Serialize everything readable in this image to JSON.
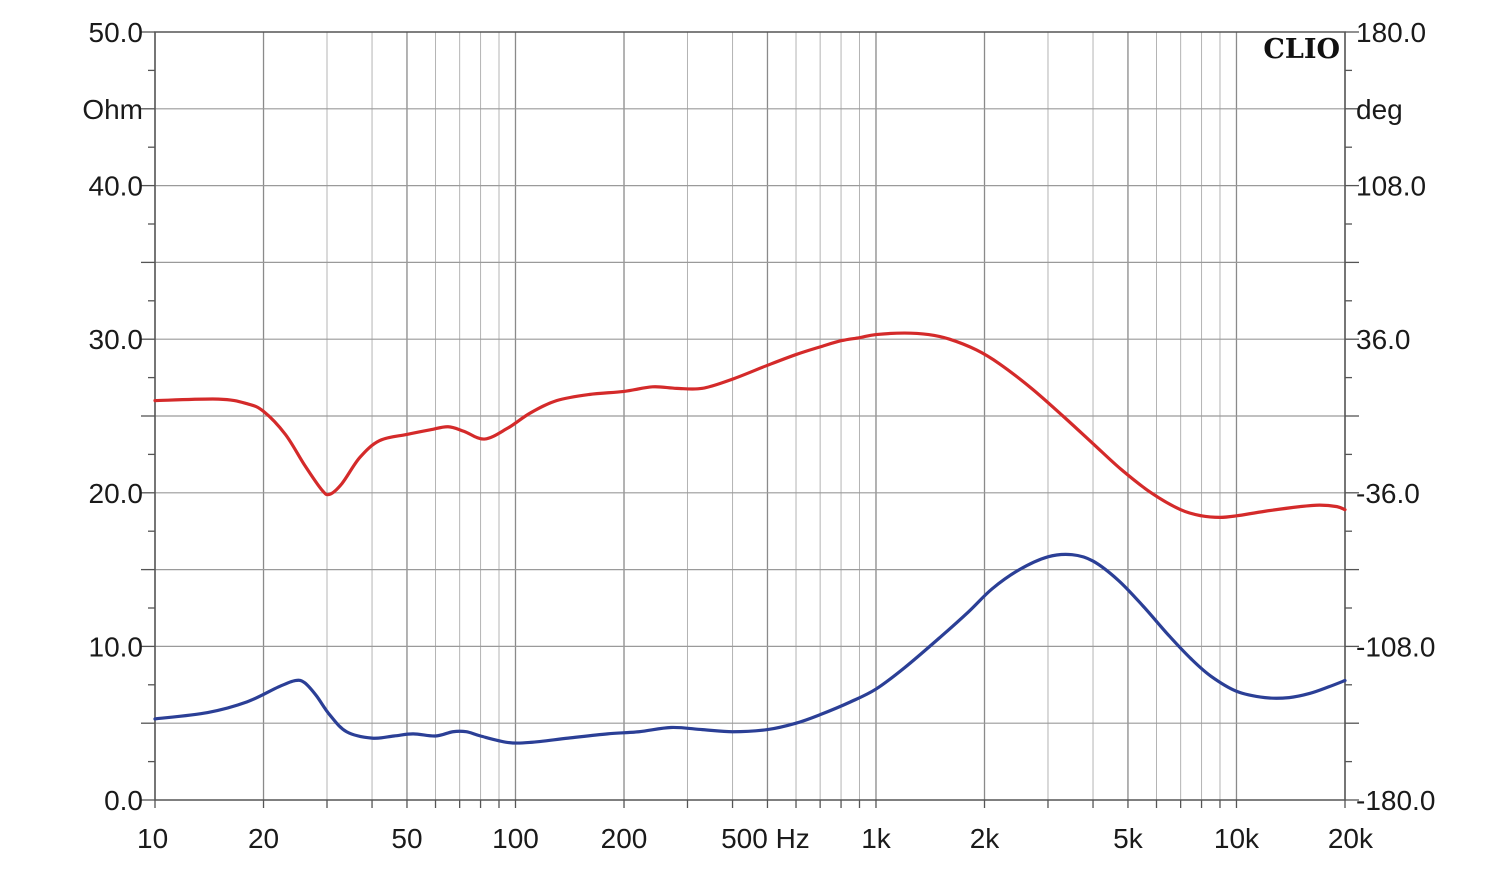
{
  "chart_data": {
    "type": "line",
    "brand": "CLIO",
    "x_scale": "log",
    "xlim": [
      10,
      20000
    ],
    "x_ticks": [
      {
        "value": 10,
        "label": "10"
      },
      {
        "value": 20,
        "label": "20"
      },
      {
        "value": 50,
        "label": "50"
      },
      {
        "value": 100,
        "label": "100"
      },
      {
        "value": 200,
        "label": "200"
      },
      {
        "value": 500,
        "label": "500 Hz"
      },
      {
        "value": 1000,
        "label": "1k"
      },
      {
        "value": 2000,
        "label": "2k"
      },
      {
        "value": 5000,
        "label": "5k"
      },
      {
        "value": 10000,
        "label": "10k"
      },
      {
        "value": 20000,
        "label": "20k"
      }
    ],
    "y_left": {
      "unit": "Ohm",
      "lim": [
        0,
        50
      ],
      "ticks": [
        {
          "value": 0,
          "label": "0.0"
        },
        {
          "value": 10,
          "label": "10.0"
        },
        {
          "value": 20,
          "label": "20.0"
        },
        {
          "value": 30,
          "label": "30.0"
        },
        {
          "value": 40,
          "label": "40.0"
        },
        {
          "value": 50,
          "label": "50.0"
        }
      ]
    },
    "y_right": {
      "unit": "deg",
      "lim": [
        -180,
        180
      ],
      "ticks": [
        {
          "value": -180,
          "label": "-180.0"
        },
        {
          "value": -108,
          "label": "-108.0"
        },
        {
          "value": -36,
          "label": "-36.0"
        },
        {
          "value": 36,
          "label": "36.0"
        },
        {
          "value": 108,
          "label": "108.0"
        },
        {
          "value": 180,
          "label": "180.0"
        }
      ]
    },
    "grid": true,
    "series": [
      {
        "color": "#d42a2a",
        "axis": "left",
        "points": [
          [
            10,
            26.0
          ],
          [
            15,
            26.1
          ],
          [
            18,
            25.8
          ],
          [
            20,
            25.3
          ],
          [
            23,
            23.8
          ],
          [
            26,
            21.8
          ],
          [
            29,
            20.2
          ],
          [
            30.5,
            19.9
          ],
          [
            33,
            20.6
          ],
          [
            37,
            22.3
          ],
          [
            42,
            23.4
          ],
          [
            50,
            23.8
          ],
          [
            58,
            24.1
          ],
          [
            65,
            24.3
          ],
          [
            72,
            24.0
          ],
          [
            82,
            23.5
          ],
          [
            95,
            24.2
          ],
          [
            110,
            25.2
          ],
          [
            130,
            26.0
          ],
          [
            160,
            26.4
          ],
          [
            200,
            26.6
          ],
          [
            240,
            26.9
          ],
          [
            280,
            26.8
          ],
          [
            330,
            26.8
          ],
          [
            400,
            27.4
          ],
          [
            500,
            28.3
          ],
          [
            600,
            29.0
          ],
          [
            700,
            29.5
          ],
          [
            800,
            29.9
          ],
          [
            900,
            30.1
          ],
          [
            1000,
            30.3
          ],
          [
            1200,
            30.4
          ],
          [
            1400,
            30.3
          ],
          [
            1600,
            30.0
          ],
          [
            1900,
            29.3
          ],
          [
            2200,
            28.4
          ],
          [
            2700,
            26.8
          ],
          [
            3300,
            25.0
          ],
          [
            4000,
            23.2
          ],
          [
            4800,
            21.5
          ],
          [
            5800,
            20.0
          ],
          [
            7000,
            18.9
          ],
          [
            8000,
            18.5
          ],
          [
            9000,
            18.4
          ],
          [
            10000,
            18.5
          ],
          [
            12000,
            18.8
          ],
          [
            15000,
            19.1
          ],
          [
            17000,
            19.2
          ],
          [
            19000,
            19.1
          ],
          [
            20000,
            18.9
          ]
        ]
      },
      {
        "color": "#2b3f96",
        "axis": "right",
        "points": [
          [
            10,
            -142
          ],
          [
            14,
            -139
          ],
          [
            18,
            -134
          ],
          [
            22,
            -127
          ],
          [
            24.5,
            -124
          ],
          [
            26,
            -125
          ],
          [
            28,
            -131
          ],
          [
            30.5,
            -140
          ],
          [
            34,
            -148
          ],
          [
            40,
            -151
          ],
          [
            46,
            -150
          ],
          [
            52,
            -149
          ],
          [
            60,
            -150
          ],
          [
            67,
            -148
          ],
          [
            73,
            -148
          ],
          [
            80,
            -150
          ],
          [
            95,
            -153
          ],
          [
            110,
            -153
          ],
          [
            140,
            -151
          ],
          [
            180,
            -149
          ],
          [
            220,
            -148
          ],
          [
            270,
            -146
          ],
          [
            330,
            -147
          ],
          [
            400,
            -148
          ],
          [
            500,
            -147
          ],
          [
            600,
            -144
          ],
          [
            700,
            -140
          ],
          [
            850,
            -134
          ],
          [
            1000,
            -128
          ],
          [
            1200,
            -118
          ],
          [
            1500,
            -104
          ],
          [
            1800,
            -92
          ],
          [
            2100,
            -81
          ],
          [
            2500,
            -72
          ],
          [
            3000,
            -66
          ],
          [
            3500,
            -65
          ],
          [
            4000,
            -68
          ],
          [
            4700,
            -77
          ],
          [
            5500,
            -89
          ],
          [
            6500,
            -103
          ],
          [
            7500,
            -114
          ],
          [
            8500,
            -122
          ],
          [
            10000,
            -129
          ],
          [
            12000,
            -132
          ],
          [
            14000,
            -132
          ],
          [
            16000,
            -130
          ],
          [
            18000,
            -127
          ],
          [
            20000,
            -124
          ]
        ]
      }
    ]
  }
}
